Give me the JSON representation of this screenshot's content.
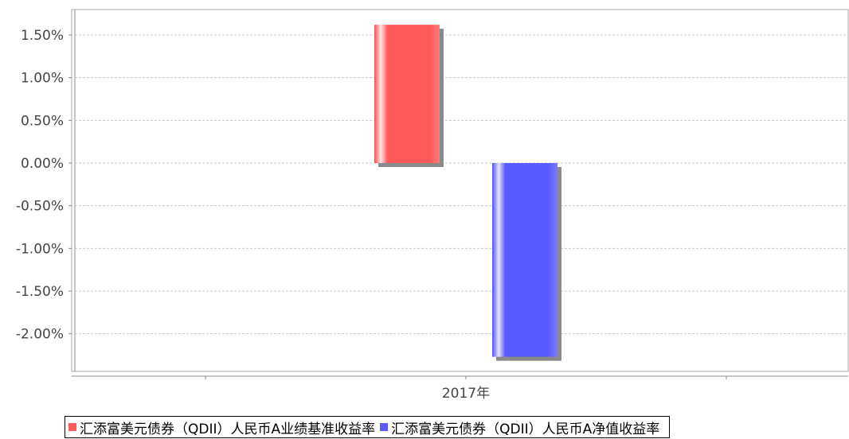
{
  "chart_data": {
    "type": "bar",
    "categories": [
      "2017年"
    ],
    "series": [
      {
        "name": "汇添富美元债券（QDII）人民币A业绩基准收益率",
        "color": "#ff5a5a",
        "values": [
          1.62
        ]
      },
      {
        "name": "汇添富美元债券（QDII）人民币A净值收益率",
        "color": "#5a5aff",
        "values": [
          -2.27
        ]
      }
    ],
    "ylim": [
      -2.4,
      1.75
    ],
    "yticks": [
      1.5,
      1.0,
      0.5,
      0.0,
      -0.5,
      -1.0,
      -1.5,
      -2.0
    ],
    "ytick_labels": [
      "1.50%",
      "1.00%",
      "0.50%",
      "0.00%",
      "-0.50%",
      "-1.00%",
      "-1.50%",
      "-2.00%"
    ],
    "grid": true,
    "legend_position": "bottom"
  }
}
